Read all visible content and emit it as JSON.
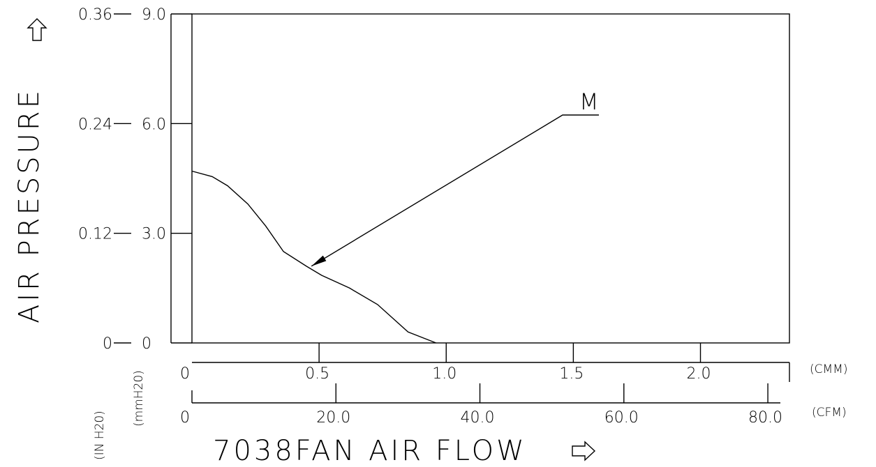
{
  "chart_data": {
    "type": "line",
    "title": "",
    "xlabel": "7038FAN AIR FLOW",
    "ylabel": "AIR PRESSURE",
    "y_axes": [
      {
        "name": "mmH2O",
        "unit_label": "(mmH20)",
        "ticks": [
          0,
          3.0,
          6.0,
          9.0
        ],
        "tick_labels": [
          "0",
          "3.0",
          "6.0",
          "9.0"
        ],
        "ylim": [
          0,
          9.0
        ]
      },
      {
        "name": "inH2O",
        "unit_label": "(IN H20)",
        "ticks": [
          0,
          0.12,
          0.24,
          0.36
        ],
        "tick_labels": [
          "0",
          "0.12",
          "0.24",
          "0.36"
        ],
        "ylim": [
          0,
          0.36
        ]
      }
    ],
    "x_axes": [
      {
        "name": "CMM",
        "unit_label": "(CMM)",
        "ticks": [
          0,
          0.5,
          1.0,
          1.5,
          2.0
        ],
        "tick_labels": [
          "0",
          "0.5",
          "1.0",
          "1.5",
          "2.0"
        ],
        "xlim": [
          0,
          2.35
        ]
      },
      {
        "name": "CFM",
        "unit_label": "(CFM)",
        "ticks": [
          0,
          20.0,
          40.0,
          60.0,
          80.0
        ],
        "tick_labels": [
          "0",
          "20.0",
          "40.0",
          "60.0",
          "80.0"
        ],
        "xlim": [
          0,
          83
        ]
      }
    ],
    "series": [
      {
        "name": "M",
        "x_axis": "CMM",
        "y_axis": "mmH2O",
        "points": [
          [
            0.0,
            4.7
          ],
          [
            0.08,
            4.55
          ],
          [
            0.14,
            4.3
          ],
          [
            0.22,
            3.8
          ],
          [
            0.29,
            3.2
          ],
          [
            0.36,
            2.5
          ],
          [
            0.45,
            2.1
          ],
          [
            0.51,
            1.85
          ],
          [
            0.62,
            1.5
          ],
          [
            0.73,
            1.05
          ],
          [
            0.85,
            0.3
          ],
          [
            0.96,
            0.0
          ]
        ]
      }
    ],
    "annotations": [
      {
        "text": "M",
        "target_series": "M",
        "arrow_to": [
          0.47,
          2.1
        ]
      }
    ],
    "grid": false
  }
}
